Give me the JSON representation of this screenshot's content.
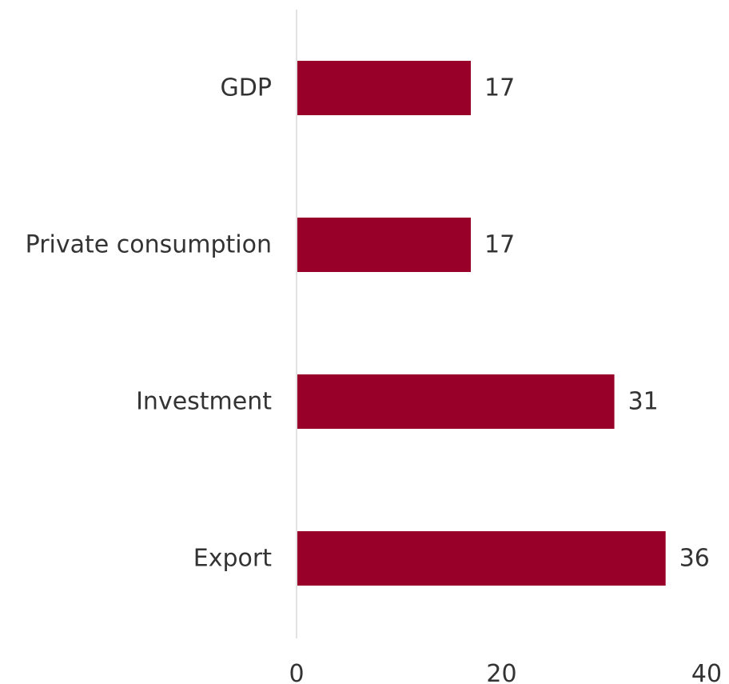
{
  "chart_data": {
    "type": "bar",
    "orientation": "horizontal",
    "categories": [
      "GDP",
      "Private consumption",
      "Investment",
      "Export"
    ],
    "values": [
      17,
      17,
      31,
      36
    ],
    "data_labels": [
      "17",
      "17",
      "31",
      "36"
    ],
    "xlim": [
      0,
      40
    ],
    "x_ticks": [
      0,
      20,
      40
    ],
    "x_tick_labels": [
      "0",
      "20",
      "40"
    ],
    "bar_color": "#990029",
    "axis_color": "#d9d9d9",
    "text_color": "#333333",
    "grid": false,
    "legend": "none"
  }
}
